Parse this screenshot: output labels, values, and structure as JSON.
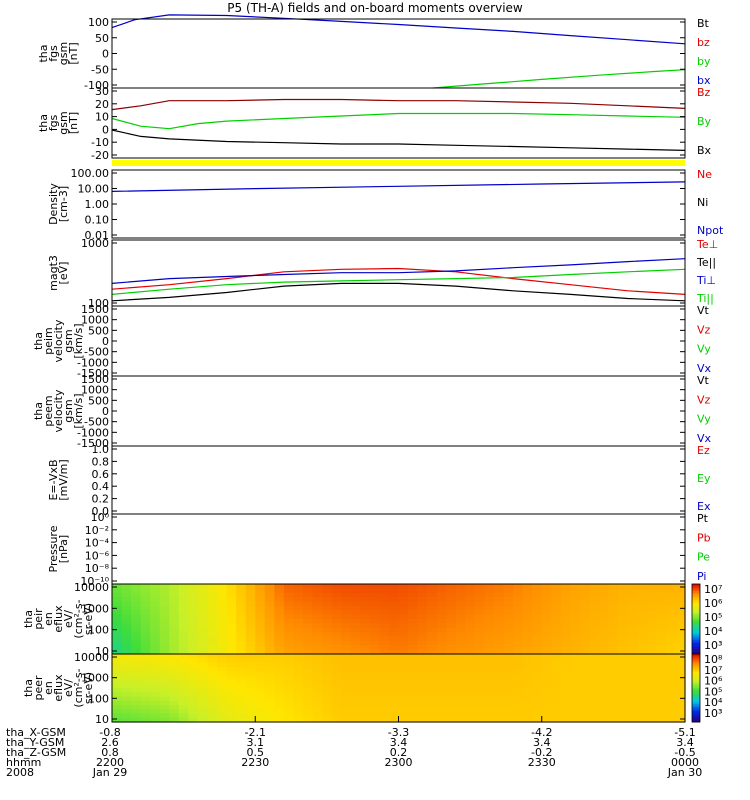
{
  "title": "P5 (TH-A) fields and on-board moments overview",
  "colors": {
    "axis": "#000000",
    "red": "#e10000",
    "darkred": "#8b0000",
    "green": "#00d000",
    "blue": "#0000c8",
    "black": "#000000",
    "yellow": "#ffff00"
  },
  "chart_data": [
    {
      "type": "line",
      "panel": "fgs_gsm",
      "ylabel": [
        "tha",
        "fgs",
        "gsm",
        "[nT]"
      ],
      "yticks": [
        "100",
        "50",
        "0",
        "-50",
        "-100"
      ],
      "ylim": [
        -100,
        100
      ],
      "legend": [
        {
          "label": "Bt",
          "color": "#000000"
        },
        {
          "label": "bz",
          "color": "#e10000"
        },
        {
          "label": "by",
          "color": "#00d000"
        },
        {
          "label": "bx",
          "color": "#0000c8"
        }
      ],
      "series": [
        {
          "color": "#0000c8",
          "x": [
            0,
            0.04,
            0.1,
            0.2,
            0.3,
            0.4,
            0.5,
            0.6,
            0.7,
            0.8,
            0.9,
            1.0
          ],
          "y": [
            75,
            98,
            112,
            110,
            102,
            93,
            84,
            74,
            64,
            52,
            40,
            28
          ]
        },
        {
          "color": "#00d000",
          "x": [
            0.56,
            0.65,
            0.75,
            0.85,
            0.95,
            1.0
          ],
          "y": [
            -100,
            -88,
            -75,
            -63,
            -52,
            -47
          ]
        }
      ]
    },
    {
      "type": "line",
      "panel": "fgs_dsl",
      "ylabel": [
        "tha",
        "fgs",
        "gsm",
        "[nT]"
      ],
      "yticks": [
        "30",
        "20",
        "10",
        "0",
        "-10",
        "-20"
      ],
      "ylim": [
        -25,
        30
      ],
      "legend": [
        {
          "label": "Bz",
          "color": "#e10000"
        },
        {
          "label": "By",
          "color": "#00d000"
        },
        {
          "label": "Bx",
          "color": "#000000"
        }
      ],
      "series": [
        {
          "color": "#8b0000",
          "x": [
            0,
            0.05,
            0.1,
            0.2,
            0.3,
            0.4,
            0.5,
            0.6,
            0.7,
            0.8,
            0.9,
            1.0
          ],
          "y": [
            13,
            16,
            20,
            20,
            21,
            21,
            20,
            20,
            19,
            18,
            16,
            14
          ]
        },
        {
          "color": "#00d000",
          "x": [
            0,
            0.05,
            0.1,
            0.15,
            0.2,
            0.3,
            0.4,
            0.5,
            0.6,
            0.7,
            0.8,
            0.9,
            1.0
          ],
          "y": [
            6,
            0,
            -2,
            2,
            4,
            6,
            8,
            10,
            10,
            10,
            9,
            8,
            7
          ]
        },
        {
          "color": "#000000",
          "x": [
            0,
            0.05,
            0.1,
            0.2,
            0.3,
            0.4,
            0.5,
            0.6,
            0.7,
            0.8,
            0.9,
            1.0
          ],
          "y": [
            -3,
            -8,
            -10,
            -12,
            -13,
            -14,
            -14,
            -15,
            -16,
            -17,
            -18,
            -19
          ]
        }
      ]
    },
    {
      "type": "line",
      "panel": "density",
      "ylabel": [
        "Density",
        "[cm-3]"
      ],
      "yticks": [
        "100.00",
        "10.00",
        "1.00",
        "0.10",
        "0.01"
      ],
      "ylim": [
        0.01,
        100
      ],
      "scale": "log",
      "legend": [
        {
          "label": "Ne",
          "color": "#e10000"
        },
        {
          "label": "Ni",
          "color": "#000000"
        },
        {
          "label": "Npot",
          "color": "#0000c8"
        }
      ],
      "series": [
        {
          "color": "#0000c8",
          "x": [
            0,
            0.25,
            0.5,
            0.75,
            1.0
          ],
          "y": [
            5.5,
            8,
            11,
            15,
            20
          ]
        }
      ]
    },
    {
      "type": "line",
      "panel": "temperature",
      "ylabel": [
        "magt3",
        "[eV]"
      ],
      "yticks": [
        "1000",
        "100"
      ],
      "ylim": [
        100,
        1000
      ],
      "scale": "log",
      "legend": [
        {
          "label": "Te⊥",
          "color": "#e10000"
        },
        {
          "label": "Te||",
          "color": "#000000"
        },
        {
          "label": "Ti⊥",
          "color": "#0000c8"
        },
        {
          "label": "Ti||",
          "color": "#00d000"
        }
      ],
      "series": [
        {
          "color": "#e10000",
          "x": [
            0,
            0.1,
            0.2,
            0.3,
            0.4,
            0.5,
            0.6,
            0.7,
            0.8,
            0.9,
            1.0
          ],
          "y": [
            180,
            210,
            260,
            330,
            360,
            370,
            330,
            260,
            210,
            170,
            150
          ]
        },
        {
          "color": "#000000",
          "x": [
            0,
            0.1,
            0.2,
            0.3,
            0.4,
            0.5,
            0.6,
            0.7,
            0.8,
            0.9,
            1.0
          ],
          "y": [
            120,
            135,
            160,
            200,
            220,
            220,
            200,
            170,
            150,
            130,
            120
          ]
        },
        {
          "color": "#0000c8",
          "x": [
            0,
            0.1,
            0.2,
            0.3,
            0.4,
            0.5,
            0.6,
            0.7,
            0.8,
            0.9,
            1.0
          ],
          "y": [
            220,
            260,
            280,
            300,
            320,
            320,
            340,
            380,
            420,
            470,
            520
          ]
        },
        {
          "color": "#00d000",
          "x": [
            0,
            0.1,
            0.2,
            0.3,
            0.4,
            0.5,
            0.6,
            0.7,
            0.8,
            0.9,
            1.0
          ],
          "y": [
            150,
            180,
            210,
            230,
            240,
            250,
            260,
            270,
            300,
            330,
            360
          ]
        }
      ]
    },
    {
      "type": "line",
      "panel": "peim_velocity",
      "ylabel": [
        "tha",
        "peim",
        "velocity",
        "gsm",
        "[km/s]"
      ],
      "yticks": [
        "1500",
        "1000",
        "500",
        "0",
        "-500",
        "-1000",
        "-1500"
      ],
      "ylim": [
        -1500,
        1500
      ],
      "legend": [
        {
          "label": "Vt",
          "color": "#000000"
        },
        {
          "label": "Vz",
          "color": "#e10000"
        },
        {
          "label": "Vy",
          "color": "#00d000"
        },
        {
          "label": "Vx",
          "color": "#0000c8"
        }
      ],
      "series": []
    },
    {
      "type": "line",
      "panel": "peem_velocity",
      "ylabel": [
        "tha",
        "peem",
        "velocity",
        "gsm",
        "[km/s]"
      ],
      "yticks": [
        "1500",
        "1000",
        "500",
        "0",
        "-500",
        "-1000",
        "-1500"
      ],
      "ylim": [
        -1500,
        1500
      ],
      "legend": [
        {
          "label": "Vt",
          "color": "#000000"
        },
        {
          "label": "Vz",
          "color": "#e10000"
        },
        {
          "label": "Vy",
          "color": "#00d000"
        },
        {
          "label": "Vx",
          "color": "#0000c8"
        }
      ],
      "series": []
    },
    {
      "type": "line",
      "panel": "efield",
      "ylabel": [
        "E=-VxB",
        "[mV/m]"
      ],
      "yticks": [
        "1.0",
        "0.8",
        "0.6",
        "0.4",
        "0.2",
        "0.0"
      ],
      "ylim": [
        0,
        1
      ],
      "legend": [
        {
          "label": "Ez",
          "color": "#e10000"
        },
        {
          "label": "Ey",
          "color": "#00d000"
        },
        {
          "label": "Ex",
          "color": "#0000c8"
        }
      ],
      "series": []
    },
    {
      "type": "line",
      "panel": "pressure",
      "ylabel": [
        "Pressure",
        "[nPa]"
      ],
      "yticks": [
        "10⁰",
        "10⁻²",
        "10⁻⁴",
        "10⁻⁶",
        "10⁻⁸",
        "10⁻¹⁰"
      ],
      "ylim": [
        1e-10,
        1
      ],
      "scale": "log",
      "legend": [
        {
          "label": "Pt",
          "color": "#000000"
        },
        {
          "label": "Pb",
          "color": "#e10000"
        },
        {
          "label": "Pe",
          "color": "#00d000"
        },
        {
          "label": "Pi",
          "color": "#0000c8"
        }
      ],
      "series": []
    },
    {
      "type": "heatmap",
      "panel": "peir_spectrogram",
      "ylabel": [
        "tha",
        "peir",
        "en",
        "eflux",
        "eV/",
        "(cm²-s-",
        "sr-eV)"
      ],
      "yticks": [
        "10000",
        "1000",
        "100",
        "10"
      ],
      "ylim": [
        10,
        30000
      ],
      "scale": "log",
      "colorbar": [
        "10⁷",
        "10⁶",
        "10⁵",
        "10⁴",
        "10³"
      ],
      "columns": [
        0,
        0.1,
        0.2,
        0.3,
        0.4,
        0.5,
        0.6,
        0.7,
        0.8,
        0.9,
        1.0
      ],
      "level_top": [
        5.0,
        5.3,
        5.9,
        6.6,
        6.7,
        6.7,
        6.6,
        6.5,
        6.3,
        6.2,
        6.2
      ],
      "level_bottom": [
        4.5,
        5.2,
        5.8,
        6.3,
        6.4,
        6.5,
        6.4,
        6.3,
        6.2,
        6.1,
        6.0
      ]
    },
    {
      "type": "heatmap",
      "panel": "peer_spectrogram",
      "ylabel": [
        "tha",
        "peer",
        "en",
        "eflux",
        "eV/",
        "(cm²-s-",
        "sr-eV)"
      ],
      "yticks": [
        "10000",
        "1000",
        "100",
        "10"
      ],
      "ylim": [
        10,
        30000
      ],
      "scale": "log",
      "colorbar": [
        "10⁸",
        "10⁷",
        "10⁶",
        "10⁵",
        "10⁴",
        "10³"
      ],
      "columns": [
        0,
        0.1,
        0.2,
        0.3,
        0.4,
        0.5,
        0.6,
        0.7,
        0.8,
        0.9,
        1.0
      ],
      "level_top": [
        6.5,
        6.6,
        6.8,
        6.8,
        6.9,
        6.9,
        6.9,
        6.9,
        6.8,
        6.8,
        6.8
      ],
      "level_bottom": [
        5.4,
        5.6,
        6.3,
        6.6,
        6.8,
        6.8,
        6.8,
        6.8,
        6.8,
        6.8,
        6.8
      ]
    }
  ],
  "x_axis": {
    "row_labels": [
      "tha_X-GSM",
      "tha_Y-GSM",
      "tha_Z-GSM",
      "hhmm",
      "2008"
    ],
    "ticks": [
      {
        "vals": [
          "-0.8",
          "2.6",
          "0.8",
          "2200",
          "Jan 29"
        ]
      },
      {
        "vals": [
          "-2.1",
          "3.1",
          "0.5",
          "2230",
          ""
        ]
      },
      {
        "vals": [
          "-3.3",
          "3.4",
          "0.2",
          "2300",
          ""
        ]
      },
      {
        "vals": [
          "-4.2",
          "3.4",
          "-0.2",
          "2330",
          ""
        ]
      },
      {
        "vals": [
          "-5.1",
          "3.4",
          "-0.5",
          "0000",
          "Jan 30"
        ]
      }
    ]
  }
}
